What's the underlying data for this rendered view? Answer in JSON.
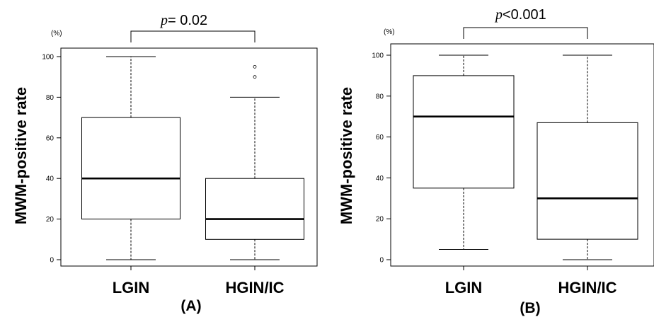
{
  "chart_data": [
    {
      "type": "box",
      "panel_label": "(A)",
      "ylabel": "MWM-positive rate",
      "y_unit": "(%)",
      "ylim": [
        0,
        100
      ],
      "yticks": [
        "0",
        "20",
        "40",
        "60",
        "80",
        "100"
      ],
      "annotation": {
        "prefix": "p",
        "text": "= 0.02"
      },
      "categories": [
        "LGIN",
        "HGIN/IC"
      ],
      "boxes": [
        {
          "min": 0,
          "q1": 20,
          "median": 40,
          "q3": 70,
          "max": 100,
          "outliers": []
        },
        {
          "min": 0,
          "q1": 10,
          "median": 20,
          "q3": 40,
          "max": 80,
          "outliers": [
            90,
            95
          ]
        }
      ]
    },
    {
      "type": "box",
      "panel_label": "(B)",
      "ylabel": "MWM-positive rate",
      "y_unit": "(%)",
      "ylim": [
        0,
        100
      ],
      "yticks": [
        "0",
        "20",
        "40",
        "60",
        "80",
        "100"
      ],
      "annotation": {
        "prefix": "p",
        "text": "<0.001"
      },
      "categories": [
        "LGIN",
        "HGIN/IC"
      ],
      "boxes": [
        {
          "min": 5,
          "q1": 35,
          "median": 70,
          "q3": 90,
          "max": 100,
          "outliers": []
        },
        {
          "min": 0,
          "q1": 10,
          "median": 30,
          "q3": 67,
          "max": 100,
          "outliers": []
        }
      ]
    }
  ]
}
